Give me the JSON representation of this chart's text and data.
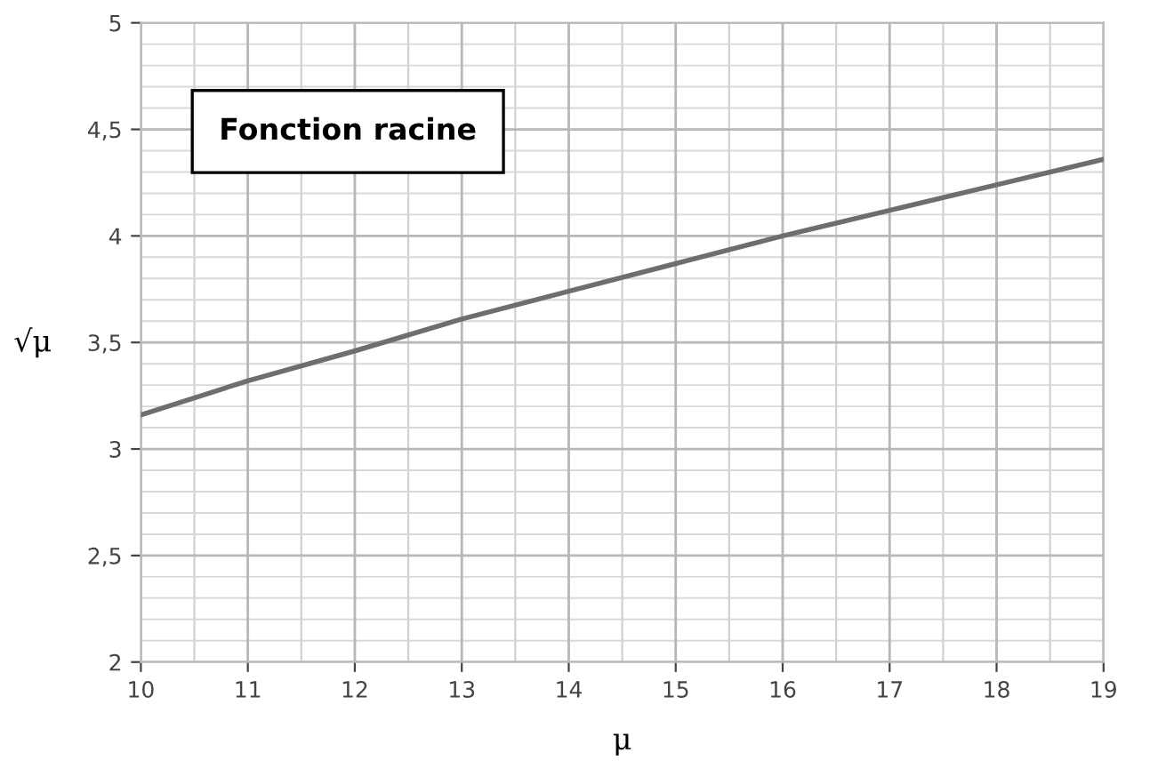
{
  "chart_data": {
    "type": "line",
    "title": "Fonction racine",
    "xlabel": "μ",
    "ylabel": "√μ",
    "x": [
      10,
      11,
      12,
      13,
      14,
      15,
      16,
      17,
      18,
      19
    ],
    "series": [
      {
        "color": "#6e6e6e",
        "values": [
          3.16,
          3.32,
          3.46,
          3.61,
          3.74,
          3.87,
          4.0,
          4.12,
          4.24,
          4.36
        ]
      }
    ],
    "xlim": [
      10,
      19
    ],
    "xticks": [
      10,
      11,
      12,
      13,
      14,
      15,
      16,
      17,
      18,
      19
    ],
    "ylim": [
      2,
      5
    ],
    "yticks": [
      2,
      {
        "value": 2.5,
        "label": "2,5"
      },
      3,
      {
        "value": 3.5,
        "label": "3,5"
      },
      4,
      {
        "value": 4.5,
        "label": "4,5"
      },
      5
    ],
    "grid": true,
    "marker": "none",
    "line_style": "solid"
  }
}
